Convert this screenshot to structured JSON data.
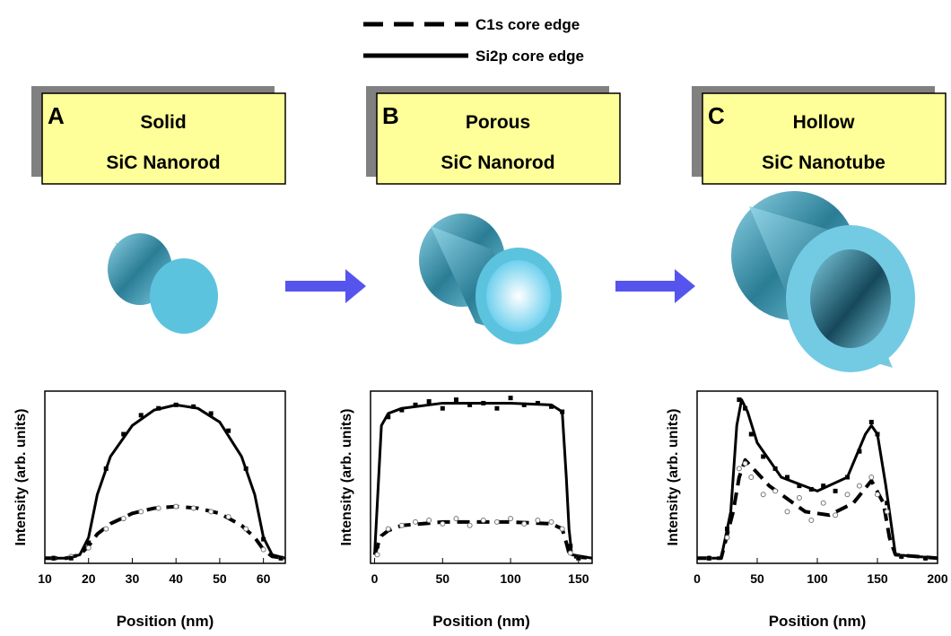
{
  "chart_data": [
    {
      "type": "line",
      "panel": "A",
      "title_lines": [
        "Solid",
        "SiC Nanorod"
      ],
      "xlabel": "Position (nm)",
      "ylabel": "Intensity (arb. units)",
      "xlim": [
        10,
        65
      ],
      "xticks": [
        10,
        20,
        30,
        40,
        50,
        60
      ],
      "ylim": [
        0,
        1
      ],
      "series": [
        {
          "name": "C1s core edge",
          "style": "dashed",
          "color": "#000000",
          "x": [
            10,
            15,
            18,
            20,
            22,
            25,
            30,
            35,
            40,
            45,
            50,
            55,
            58,
            60,
            62,
            65
          ],
          "values": [
            0.03,
            0.03,
            0.05,
            0.1,
            0.17,
            0.23,
            0.29,
            0.32,
            0.33,
            0.32,
            0.29,
            0.22,
            0.15,
            0.08,
            0.04,
            0.03
          ]
        },
        {
          "name": "Si2p core edge",
          "style": "solid",
          "color": "#000000",
          "x": [
            10,
            15,
            18,
            20,
            22,
            25,
            30,
            35,
            40,
            45,
            50,
            55,
            58,
            60,
            62,
            65
          ],
          "values": [
            0.03,
            0.03,
            0.05,
            0.15,
            0.4,
            0.62,
            0.8,
            0.89,
            0.92,
            0.9,
            0.82,
            0.62,
            0.4,
            0.15,
            0.05,
            0.03
          ]
        },
        {
          "style": "open-circle",
          "color": "#777777",
          "x": [
            12,
            16,
            20,
            24,
            28,
            32,
            36,
            40,
            44,
            48,
            52,
            56,
            60,
            64
          ],
          "values": [
            0.03,
            0.04,
            0.09,
            0.2,
            0.26,
            0.3,
            0.32,
            0.33,
            0.32,
            0.3,
            0.27,
            0.2,
            0.08,
            0.03
          ]
        },
        {
          "style": "filled-square",
          "color": "#000000",
          "x": [
            12,
            16,
            20,
            24,
            28,
            32,
            36,
            40,
            44,
            48,
            52,
            56,
            60,
            64
          ],
          "values": [
            0.03,
            0.03,
            0.12,
            0.55,
            0.75,
            0.86,
            0.9,
            0.92,
            0.91,
            0.87,
            0.77,
            0.55,
            0.14,
            0.03
          ]
        }
      ]
    },
    {
      "type": "line",
      "panel": "B",
      "title_lines": [
        "Porous",
        "SiC Nanorod"
      ],
      "xlabel": "Position (nm)",
      "ylabel": "Intensity (arb. units)",
      "xlim": [
        -3,
        160
      ],
      "xticks": [
        0,
        50,
        100,
        150
      ],
      "ylim": [
        0,
        1
      ],
      "series": [
        {
          "style": "dashed",
          "color": "#000000",
          "x": [
            0,
            3,
            5,
            10,
            20,
            50,
            100,
            130,
            138,
            141,
            143,
            145,
            160
          ],
          "values": [
            0.05,
            0.12,
            0.16,
            0.19,
            0.22,
            0.24,
            0.24,
            0.23,
            0.2,
            0.12,
            0.06,
            0.04,
            0.03
          ]
        },
        {
          "style": "solid",
          "color": "#000000",
          "x": [
            0,
            3,
            5,
            10,
            20,
            50,
            100,
            130,
            138,
            141,
            143,
            145,
            160
          ],
          "values": [
            0.05,
            0.5,
            0.8,
            0.87,
            0.9,
            0.93,
            0.93,
            0.92,
            0.88,
            0.5,
            0.2,
            0.05,
            0.03
          ]
        },
        {
          "style": "open-circle",
          "color": "#777777",
          "x": [
            2,
            10,
            20,
            30,
            40,
            50,
            60,
            70,
            80,
            90,
            100,
            110,
            120,
            130,
            138,
            144,
            150
          ],
          "values": [
            0.05,
            0.2,
            0.22,
            0.24,
            0.25,
            0.23,
            0.26,
            0.22,
            0.25,
            0.24,
            0.26,
            0.23,
            0.25,
            0.24,
            0.2,
            0.06,
            0.03
          ]
        },
        {
          "style": "filled-square",
          "color": "#000000",
          "x": [
            2,
            10,
            20,
            30,
            40,
            50,
            60,
            70,
            80,
            90,
            100,
            110,
            120,
            130,
            138,
            144,
            150
          ],
          "values": [
            0.1,
            0.85,
            0.89,
            0.92,
            0.94,
            0.9,
            0.95,
            0.92,
            0.93,
            0.9,
            0.96,
            0.92,
            0.93,
            0.91,
            0.88,
            0.1,
            0.03
          ]
        }
      ]
    },
    {
      "type": "line",
      "panel": "C",
      "title_lines": [
        "Hollow",
        "SiC Nanotube"
      ],
      "xlabel": "Position (nm)",
      "ylabel": "Intensity (arb. units)",
      "xlim": [
        0,
        200
      ],
      "xticks": [
        0,
        50,
        100,
        150,
        200
      ],
      "ylim": [
        0,
        1
      ],
      "series": [
        {
          "style": "dashed",
          "color": "#000000",
          "x": [
            0,
            20,
            30,
            35,
            40,
            60,
            90,
            110,
            130,
            145,
            155,
            160,
            165,
            200
          ],
          "values": [
            0.03,
            0.03,
            0.3,
            0.5,
            0.6,
            0.45,
            0.3,
            0.28,
            0.35,
            0.48,
            0.35,
            0.15,
            0.05,
            0.03
          ]
        },
        {
          "style": "solid",
          "color": "#000000",
          "x": [
            0,
            20,
            28,
            33,
            37,
            42,
            50,
            70,
            100,
            125,
            140,
            145,
            150,
            157,
            165,
            200
          ],
          "values": [
            0.03,
            0.03,
            0.3,
            0.8,
            0.95,
            0.88,
            0.7,
            0.5,
            0.42,
            0.5,
            0.75,
            0.8,
            0.75,
            0.45,
            0.05,
            0.03
          ]
        },
        {
          "style": "open-circle",
          "color": "#777777",
          "x": [
            10,
            25,
            35,
            40,
            45,
            55,
            65,
            75,
            85,
            95,
            105,
            115,
            125,
            135,
            145,
            150,
            158,
            170,
            190
          ],
          "values": [
            0.03,
            0.15,
            0.55,
            0.58,
            0.5,
            0.4,
            0.42,
            0.3,
            0.38,
            0.25,
            0.35,
            0.28,
            0.4,
            0.45,
            0.5,
            0.4,
            0.3,
            0.04,
            0.03
          ]
        },
        {
          "style": "filled-square",
          "color": "#000000",
          "x": [
            10,
            25,
            35,
            40,
            45,
            55,
            65,
            75,
            85,
            95,
            105,
            115,
            125,
            135,
            145,
            150,
            158,
            170,
            190
          ],
          "values": [
            0.03,
            0.2,
            0.95,
            0.9,
            0.75,
            0.62,
            0.55,
            0.5,
            0.45,
            0.43,
            0.45,
            0.42,
            0.5,
            0.65,
            0.82,
            0.75,
            0.35,
            0.04,
            0.03
          ]
        }
      ]
    }
  ]
}
